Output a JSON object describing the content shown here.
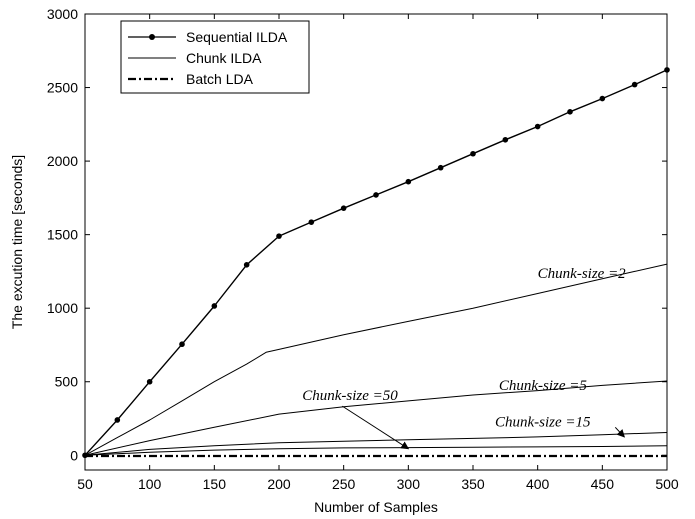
{
  "chart_data": {
    "type": "line",
    "xlabel": "Number of Samples",
    "ylabel": "The excution time [seconds]",
    "xlim": [
      50,
      500
    ],
    "ylim": [
      -100,
      3000
    ],
    "xticks": [
      50,
      100,
      150,
      200,
      250,
      300,
      350,
      400,
      450,
      500
    ],
    "yticks": [
      0,
      500,
      1000,
      1500,
      2000,
      2500,
      3000
    ],
    "grid": false,
    "legend_position": "top-left",
    "legend": [
      {
        "label": "Sequential ILDA",
        "style": "solid-dot"
      },
      {
        "label": "Chunk ILDA",
        "style": "solid"
      },
      {
        "label": "Batch LDA",
        "style": "dash-dot"
      }
    ],
    "series": [
      {
        "name": "Sequential ILDA",
        "style": "solid-dot",
        "x": [
          50,
          75,
          100,
          125,
          150,
          175,
          200,
          225,
          250,
          275,
          300,
          325,
          350,
          375,
          400,
          425,
          450,
          475,
          500
        ],
        "y": [
          0,
          240,
          500,
          755,
          1015,
          1295,
          1490,
          1585,
          1680,
          1770,
          1860,
          1955,
          2050,
          2145,
          2235,
          2335,
          2425,
          2520,
          2620
        ]
      },
      {
        "name": "Chunk ILDA",
        "style": "solid",
        "label": "Chunk-size =2",
        "x": [
          50,
          75,
          100,
          125,
          150,
          175,
          190,
          200,
          250,
          300,
          350,
          400,
          450,
          475,
          500
        ],
        "y": [
          0,
          120,
          240,
          370,
          500,
          620,
          700,
          720,
          820,
          910,
          1000,
          1100,
          1200,
          1250,
          1300
        ]
      },
      {
        "name": "Chunk ILDA",
        "style": "solid",
        "label": "Chunk-size =5",
        "x": [
          50,
          100,
          150,
          200,
          250,
          300,
          350,
          400,
          450,
          500
        ],
        "y": [
          0,
          100,
          190,
          280,
          330,
          370,
          410,
          440,
          475,
          505
        ]
      },
      {
        "name": "Chunk ILDA",
        "style": "solid",
        "label": "Chunk-size =15",
        "x": [
          50,
          100,
          150,
          200,
          250,
          300,
          350,
          400,
          450,
          500
        ],
        "y": [
          0,
          40,
          65,
          85,
          95,
          105,
          115,
          125,
          140,
          155
        ]
      },
      {
        "name": "Chunk ILDA",
        "style": "solid",
        "label": "Chunk-size =50",
        "x": [
          50,
          100,
          150,
          200,
          250,
          300,
          350,
          400,
          450,
          500
        ],
        "y": [
          0,
          20,
          35,
          45,
          50,
          52,
          55,
          57,
          60,
          65
        ]
      },
      {
        "name": "Batch LDA",
        "style": "dash-dot",
        "x": [
          50,
          500
        ],
        "y": [
          -5,
          -5
        ]
      }
    ],
    "annotations": [
      {
        "text": "Chunk-size =2",
        "x": 400,
        "y": 1205
      },
      {
        "text": "Chunk-size =5",
        "x": 370,
        "y": 445
      },
      {
        "text": "Chunk-size =15",
        "x": 367,
        "y": 195
      },
      {
        "text": "Chunk-size =50",
        "x": 218,
        "y": 375,
        "arrow_to": [
          300,
          45
        ]
      }
    ]
  }
}
